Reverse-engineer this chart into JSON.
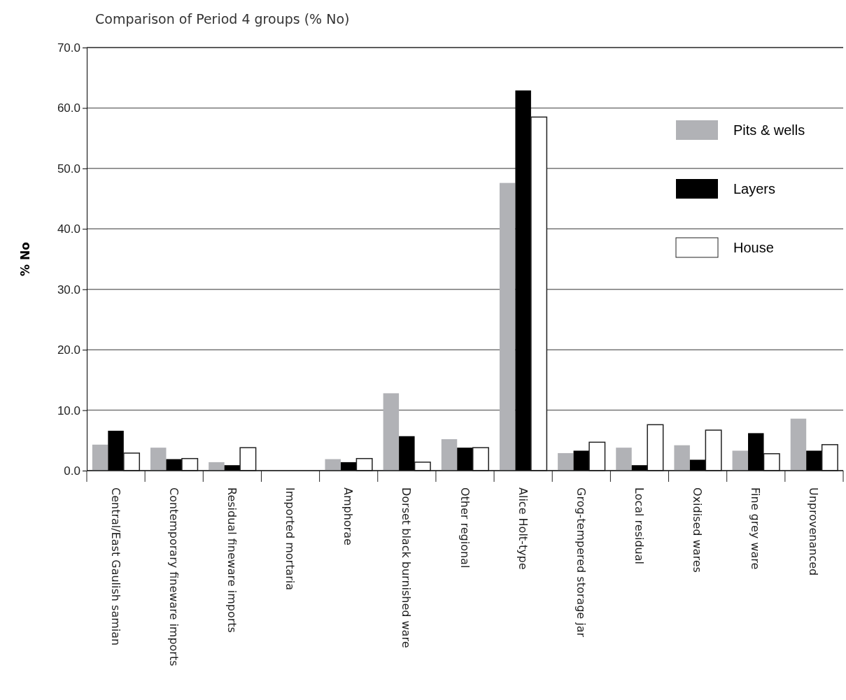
{
  "chart_data": {
    "type": "bar",
    "title": "Comparison of Period 4 groups (% No)",
    "ylabel": "% No",
    "categories": [
      "Central/East Gaulish samian",
      "Contemporary fineware imports",
      "Residual fineware imports",
      "Imported mortaria",
      "Amphorae",
      "Dorset black burnished ware",
      "Other regional",
      "Alice Holt-type",
      "Grog-tempered storage jar",
      "Local residual",
      "Oxidised wares",
      "Fine grey ware",
      "Unprovenanced"
    ],
    "series": [
      {
        "name": "Pits & wells",
        "color": "#b1b2b6",
        "values": [
          4.3,
          3.8,
          1.4,
          0,
          1.9,
          12.8,
          5.2,
          47.6,
          2.9,
          3.8,
          4.2,
          3.3,
          8.6
        ]
      },
      {
        "name": "Layers",
        "color": "#000000",
        "values": [
          6.6,
          1.9,
          0.9,
          0,
          1.4,
          5.7,
          3.8,
          62.9,
          3.3,
          0.9,
          1.8,
          6.2,
          3.3
        ]
      },
      {
        "name": "House",
        "color": "#ffffff",
        "values": [
          2.9,
          2.0,
          3.8,
          0,
          2.0,
          1.4,
          3.8,
          58.5,
          4.7,
          7.6,
          6.7,
          2.8,
          4.3
        ]
      }
    ],
    "ylim": [
      0,
      70
    ],
    "yticks": [
      {
        "value": 0,
        "label": "0.0"
      },
      {
        "value": 10,
        "label": "10.0"
      },
      {
        "value": 20,
        "label": "20.0"
      },
      {
        "value": 30,
        "label": "30.0"
      },
      {
        "value": 40,
        "label": "40.0"
      },
      {
        "value": 50,
        "label": "50.0"
      },
      {
        "value": 60,
        "label": "60.0"
      },
      {
        "value": 70,
        "label": "70.0"
      }
    ],
    "grid": "y",
    "legend": "top right"
  }
}
